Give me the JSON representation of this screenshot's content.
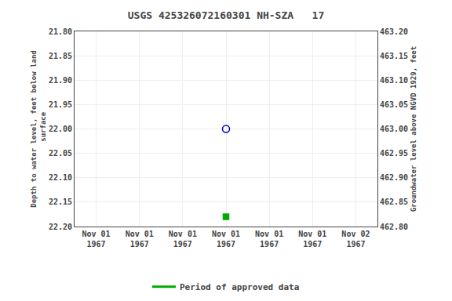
{
  "chart_data": {
    "type": "scatter",
    "title": "USGS 425326072160301 NH-SZA   17",
    "ylabel": "Depth to water level, feet below land\n surface",
    "y2label": "Groundwater level above NGVD 1929, feet",
    "categories": [
      "Nov 01\n1967",
      "Nov 01\n1967",
      "Nov 01\n1967",
      "Nov 01\n1967",
      "Nov 01\n1967",
      "Nov 01\n1967",
      "Nov 02\n1967"
    ],
    "series": [
      {
        "color": "#0000cc",
        "marker": "circle-open",
        "values": [
          null,
          null,
          null,
          22.0,
          null,
          null,
          null
        ]
      },
      {
        "name": "Period of approved data",
        "color": "#00aa00",
        "marker": "square",
        "values": [
          null,
          null,
          null,
          22.18,
          null,
          null,
          null
        ]
      }
    ],
    "ylim": [
      22.2,
      21.8
    ],
    "yticks": [
      {
        "value": 21.8,
        "label": "21.80"
      },
      {
        "value": 21.85,
        "label": "21.85"
      },
      {
        "value": 21.9,
        "label": "21.90"
      },
      {
        "value": 21.95,
        "label": "21.95"
      },
      {
        "value": 22.0,
        "label": "22.00"
      },
      {
        "value": 22.05,
        "label": "22.05"
      },
      {
        "value": 22.1,
        "label": "22.10"
      },
      {
        "value": 22.15,
        "label": "22.15"
      },
      {
        "value": 22.2,
        "label": "22.20"
      }
    ],
    "y2lim": [
      462.8,
      463.2
    ],
    "y2ticks": [
      {
        "value": 462.8,
        "label": "462.80"
      },
      {
        "value": 462.85,
        "label": "462.85"
      },
      {
        "value": 462.9,
        "label": "462.90"
      },
      {
        "value": 462.95,
        "label": "462.95"
      },
      {
        "value": 463.0,
        "label": "463.00"
      },
      {
        "value": 463.05,
        "label": "463.05"
      },
      {
        "value": 463.1,
        "label": "463.10"
      },
      {
        "value": 463.15,
        "label": "463.15"
      },
      {
        "value": 463.2,
        "label": "463.20"
      }
    ],
    "grid": true
  }
}
